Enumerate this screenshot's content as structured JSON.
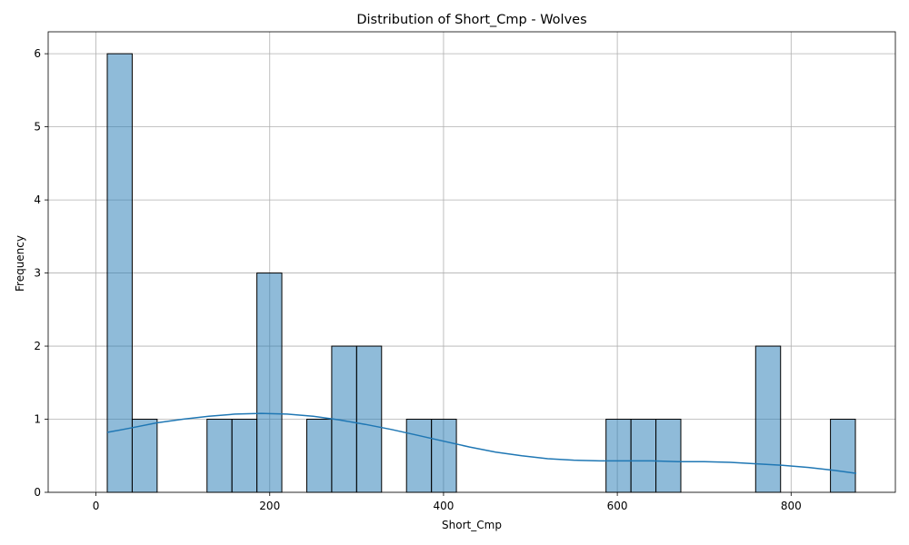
{
  "chart_data": {
    "type": "bar",
    "subtype": "histogram-with-kde",
    "title": "Distribution of Short_Cmp - Wolves",
    "xlabel": "Short_Cmp",
    "ylabel": "Frequency",
    "xlim": [
      -55,
      920
    ],
    "ylim": [
      0,
      6.3
    ],
    "xticks": [
      0,
      200,
      400,
      600,
      800
    ],
    "yticks": [
      0,
      1,
      2,
      3,
      4,
      5,
      6
    ],
    "grid": true,
    "bar_color": "#1f77b4",
    "kde_color": "#1f77b4",
    "bin_start": 13,
    "bin_width": 28.7,
    "counts": [
      6,
      1,
      0,
      0,
      1,
      1,
      3,
      0,
      1,
      2,
      2,
      0,
      1,
      1,
      0,
      0,
      0,
      0,
      0,
      0,
      1,
      1,
      1,
      0,
      0,
      0,
      2,
      0,
      0,
      1
    ],
    "kde": {
      "x": [
        13,
        40,
        70,
        100,
        130,
        160,
        190,
        220,
        250,
        280,
        310,
        340,
        370,
        400,
        430,
        460,
        490,
        520,
        550,
        580,
        610,
        640,
        670,
        700,
        730,
        760,
        790,
        820,
        850,
        875
      ],
      "y": [
        0.82,
        0.88,
        0.95,
        1.0,
        1.04,
        1.07,
        1.08,
        1.07,
        1.04,
        0.99,
        0.93,
        0.86,
        0.78,
        0.7,
        0.62,
        0.55,
        0.5,
        0.46,
        0.44,
        0.43,
        0.43,
        0.43,
        0.42,
        0.42,
        0.41,
        0.39,
        0.37,
        0.34,
        0.3,
        0.26
      ]
    }
  }
}
